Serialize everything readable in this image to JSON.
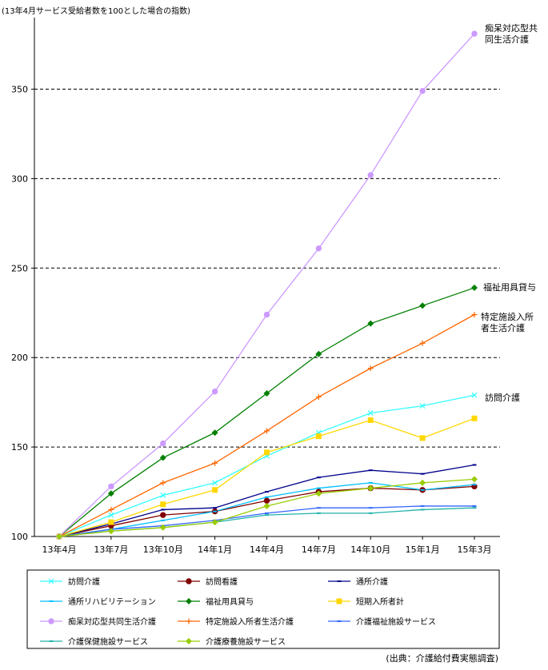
{
  "chart_data": {
    "type": "line",
    "title": "",
    "ylabel": "(13年4月サービス受給者数を100とした場合の指数)",
    "xlabel": "",
    "categories": [
      "13年4月",
      "13年7月",
      "13年10月",
      "14年1月",
      "14年4月",
      "14年7月",
      "14年10月",
      "15年1月",
      "15年3月"
    ],
    "ylim": [
      100,
      390
    ],
    "yticks": [
      100,
      150,
      200,
      250,
      300,
      350
    ],
    "grid": "horizontal dashed",
    "legend_position": "bottom",
    "series": [
      {
        "name": "訪問介護",
        "color": "#33ffff",
        "marker": "x",
        "values": [
          100,
          112,
          123,
          130,
          145,
          158,
          169,
          173,
          179
        ]
      },
      {
        "name": "訪問看護",
        "color": "#800000",
        "marker": "circle",
        "values": [
          100,
          106,
          112,
          114,
          120,
          125,
          127,
          126,
          128
        ]
      },
      {
        "name": "通所介護",
        "color": "#00008b",
        "marker": "dash",
        "values": [
          100,
          107,
          115,
          116,
          125,
          133,
          137,
          135,
          140
        ]
      },
      {
        "name": "通所リハビリテーション",
        "color": "#00bfff",
        "marker": "dash",
        "values": [
          100,
          104,
          109,
          114,
          122,
          127,
          130,
          126,
          129
        ]
      },
      {
        "name": "福祉用具貸与",
        "color": "#008000",
        "marker": "diamond",
        "values": [
          100,
          124,
          144,
          158,
          180,
          202,
          219,
          229,
          239
        ]
      },
      {
        "name": "短期入所者計",
        "color": "#ffd700",
        "marker": "square",
        "values": [
          100,
          108,
          118,
          126,
          147,
          156,
          165,
          155,
          166
        ]
      },
      {
        "name": "痴呆対応型共同生活介護",
        "color": "#cc99ff",
        "marker": "circle",
        "values": [
          100,
          128,
          152,
          181,
          224,
          261,
          302,
          349,
          381
        ]
      },
      {
        "name": "特定施設入所者生活介護",
        "color": "#ff6600",
        "marker": "plus",
        "values": [
          100,
          115,
          130,
          141,
          159,
          178,
          194,
          208,
          224
        ]
      },
      {
        "name": "介護福祉施設サービス",
        "color": "#3366ff",
        "marker": "dash",
        "values": [
          100,
          104,
          106,
          109,
          113,
          116,
          116,
          117,
          117
        ]
      },
      {
        "name": "介護保健施設サービス",
        "color": "#20b2aa",
        "marker": "dash",
        "values": [
          100,
          103,
          105,
          108,
          112,
          113,
          113,
          115,
          116
        ]
      },
      {
        "name": "介護療養施設サービス",
        "color": "#99cc00",
        "marker": "diamond",
        "values": [
          100,
          103,
          105,
          108,
          117,
          124,
          127,
          130,
          132
        ]
      }
    ],
    "annotations": [
      {
        "text": "痴呆対応型共同生活介護",
        "series": 6
      },
      {
        "text": "福祉用具貸与",
        "series": 4
      },
      {
        "text": "特定施設入所者生活介護",
        "series": 7
      },
      {
        "text": "訪問介護",
        "series": 0
      }
    ]
  },
  "source": "(出典：介護給付費実態調査)"
}
